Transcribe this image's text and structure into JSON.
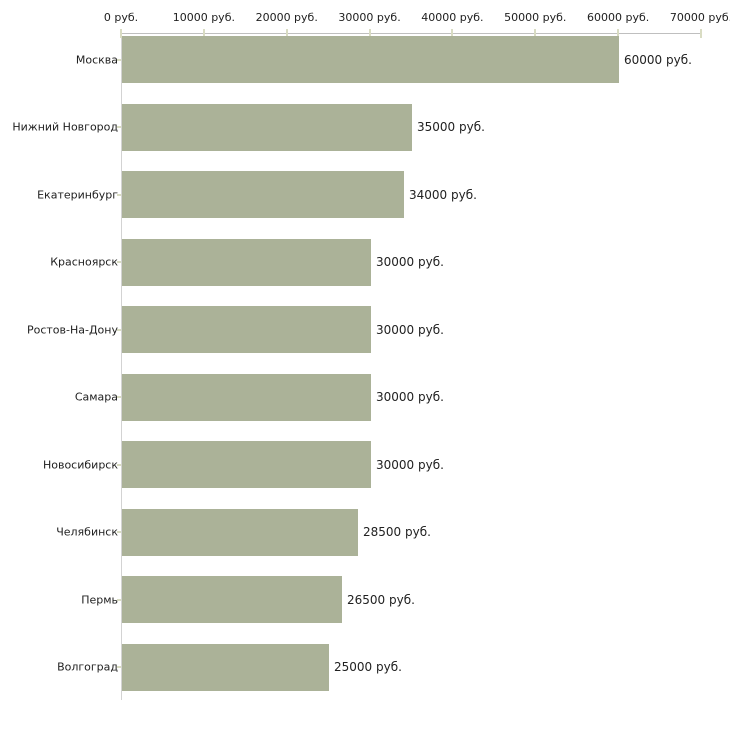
{
  "chart_data": {
    "type": "bar",
    "orientation": "horizontal",
    "title": "",
    "xlabel": "",
    "ylabel": "",
    "unit": "руб.",
    "xlim": [
      0,
      70000
    ],
    "x_tick_values": [
      0,
      10000,
      20000,
      30000,
      40000,
      50000,
      60000,
      70000
    ],
    "x_tick_labels": [
      "0 руб.",
      "10000 руб.",
      "20000 руб.",
      "30000 руб.",
      "40000 руб.",
      "50000 руб.",
      "60000 руб.",
      "70000 руб."
    ],
    "categories": [
      "Москва",
      "Нижний Новгород",
      "Екатеринбург",
      "Красноярск",
      "Ростов-На-Дону",
      "Самара",
      "Новосибирск",
      "Челябинск",
      "Пермь",
      "Волгоград"
    ],
    "values": [
      60000,
      35000,
      34000,
      30000,
      30000,
      30000,
      30000,
      28500,
      26500,
      25000
    ],
    "value_labels": [
      "60000 руб.",
      "35000 руб.",
      "34000 руб.",
      "30000 руб.",
      "30000 руб.",
      "30000 руб.",
      "30000 руб.",
      "28500 руб.",
      "26500 руб.",
      "25000 руб."
    ],
    "legend": null,
    "grid": false,
    "colors": {
      "bar": "#abb298",
      "axis_horizontal": "#bfbfbf",
      "axis_vertical": "#d3d3d3",
      "tick_mark": "#d9dcc3",
      "text": "#212121",
      "background": "#ffffff"
    }
  }
}
